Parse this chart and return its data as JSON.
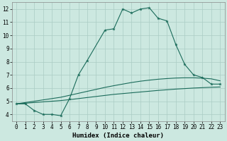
{
  "xlabel": "Humidex (Indice chaleur)",
  "background_color": "#cce8e0",
  "grid_color": "#aaccC4",
  "line_color": "#1a6b5a",
  "xlim": [
    -0.5,
    23.5
  ],
  "ylim": [
    3.5,
    12.5
  ],
  "xticks": [
    0,
    1,
    2,
    3,
    4,
    5,
    6,
    7,
    8,
    9,
    10,
    11,
    12,
    13,
    14,
    15,
    16,
    17,
    18,
    19,
    20,
    21,
    22,
    23
  ],
  "yticks": [
    4,
    5,
    6,
    7,
    8,
    9,
    10,
    11,
    12
  ],
  "line_main_x": [
    0,
    1,
    2,
    3,
    4,
    5,
    6,
    7,
    8,
    10,
    11,
    12,
    13,
    14,
    15,
    16,
    17,
    18,
    19,
    20,
    21,
    22,
    23
  ],
  "line_main_y": [
    4.8,
    4.8,
    4.3,
    4.0,
    4.0,
    3.9,
    5.2,
    7.0,
    8.1,
    10.4,
    10.5,
    12.0,
    11.7,
    12.0,
    12.1,
    11.3,
    11.1,
    9.3,
    7.8,
    7.0,
    6.8,
    6.3,
    6.3
  ],
  "line_low_x": [
    0,
    1,
    2,
    3,
    4,
    5,
    6,
    7,
    8,
    9,
    10,
    11,
    12,
    13,
    14,
    15,
    16,
    17,
    18,
    19,
    20,
    21,
    22,
    23
  ],
  "line_low_y": [
    4.8,
    4.85,
    4.9,
    4.95,
    5.0,
    5.05,
    5.12,
    5.2,
    5.28,
    5.36,
    5.44,
    5.52,
    5.58,
    5.64,
    5.7,
    5.76,
    5.82,
    5.87,
    5.92,
    5.96,
    6.0,
    6.03,
    6.06,
    6.08
  ],
  "line_mid_x": [
    0,
    1,
    2,
    3,
    4,
    5,
    6,
    7,
    8,
    9,
    10,
    11,
    12,
    13,
    14,
    15,
    16,
    17,
    18,
    19,
    20,
    21,
    22,
    23
  ],
  "line_mid_y": [
    4.8,
    4.9,
    5.0,
    5.1,
    5.2,
    5.3,
    5.45,
    5.6,
    5.75,
    5.9,
    6.05,
    6.18,
    6.3,
    6.42,
    6.52,
    6.6,
    6.67,
    6.72,
    6.76,
    6.78,
    6.78,
    6.75,
    6.7,
    6.55
  ]
}
